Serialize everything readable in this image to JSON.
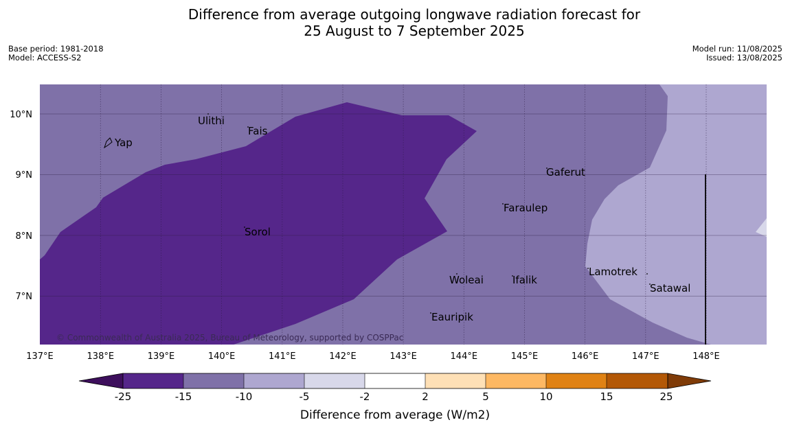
{
  "title": {
    "line1": "Difference from average outgoing longwave radiation forecast for",
    "line2": "25 August to 7 September 2025"
  },
  "meta_left": {
    "base_period": "Base period: 1981-2018",
    "model": "Model: ACCESS-S2"
  },
  "meta_right": {
    "model_run": "Model run: 11/08/2025",
    "issued": "Issued: 13/08/2025"
  },
  "map": {
    "lon_range": [
      137,
      149
    ],
    "lat_range": [
      6.2,
      10.5
    ],
    "lat_labels": [
      "10°N",
      "9°N",
      "8°N",
      "7°N"
    ],
    "lon_labels": [
      "137°E",
      "138°E",
      "139°E",
      "140°E",
      "141°E",
      "142°E",
      "143°E",
      "144°E",
      "145°E",
      "146°E",
      "147°E",
      "148°E"
    ],
    "places": [
      {
        "name": "Yap"
      },
      {
        "name": "Ulithi"
      },
      {
        "name": "Fais"
      },
      {
        "name": "Sorol"
      },
      {
        "name": "Gaferut"
      },
      {
        "name": "Faraulep"
      },
      {
        "name": "Woleai"
      },
      {
        "name": "Ifalik"
      },
      {
        "name": "Lamotrek"
      },
      {
        "name": "Satawal"
      },
      {
        "name": "Eauripik"
      }
    ],
    "copyright": "© Commonwealth of Australia 2025, Bureau of Meteorology, supported by COSPPac"
  },
  "colorbar": {
    "ticks": [
      "-25",
      "-15",
      "-10",
      "-5",
      "-2",
      "2",
      "5",
      "10",
      "15",
      "25"
    ],
    "colors": [
      "#3d0f5c",
      "#55268a",
      "#7f71a8",
      "#aea7d0",
      "#d8d8ea",
      "#ffffff",
      "#fee0b6",
      "#fdb863",
      "#e08214",
      "#b35806",
      "#7f3b08"
    ],
    "label": "Difference from average (W/m2)"
  }
}
